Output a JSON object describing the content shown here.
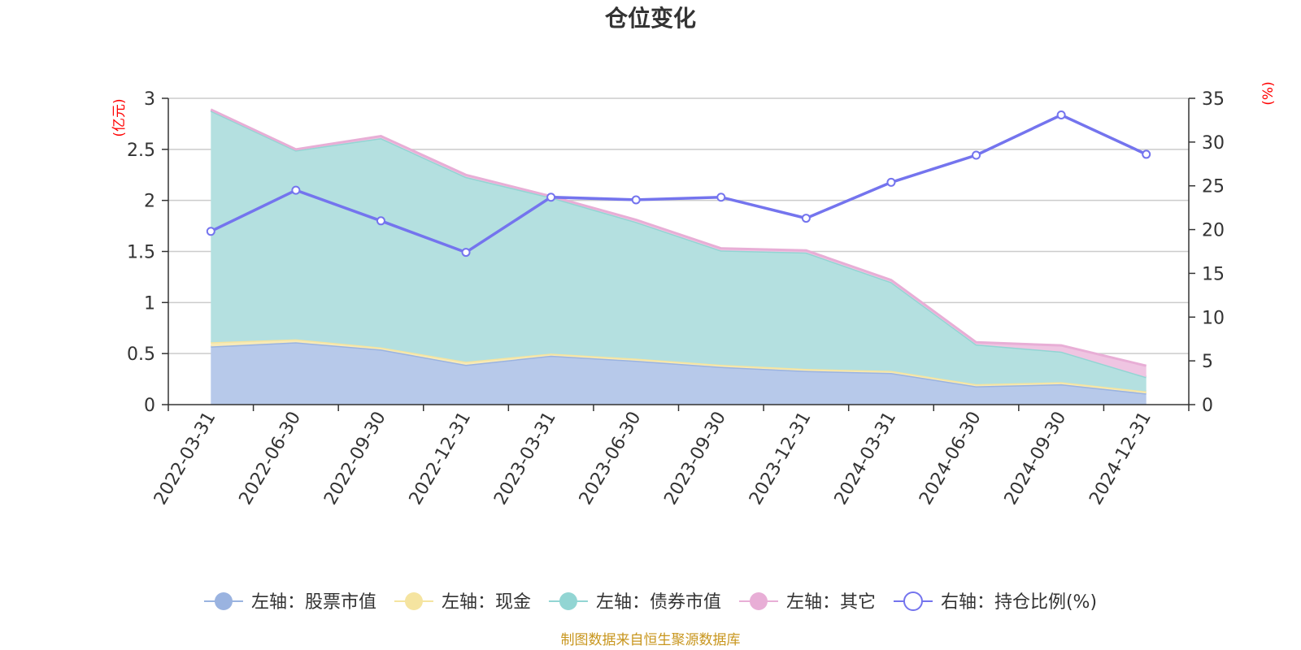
{
  "chart_data": {
    "type": "area",
    "title": "仓位变化",
    "left_unit": "(亿元)",
    "right_unit": "(%)",
    "categories": [
      "2022-03-31",
      "2022-06-30",
      "2022-09-30",
      "2022-12-31",
      "2023-03-31",
      "2023-06-30",
      "2023-09-30",
      "2023-12-31",
      "2024-03-31",
      "2024-06-30",
      "2024-09-30",
      "2024-12-31"
    ],
    "left_axis": {
      "min": 0,
      "max": 3,
      "ticks": [
        "0",
        "0.5",
        "1",
        "1.5",
        "2",
        "2.5",
        "3"
      ],
      "tick_values": [
        0,
        0.5,
        1,
        1.5,
        2,
        2.5,
        3
      ]
    },
    "right_axis": {
      "min": 0,
      "max": 35,
      "ticks": [
        "0",
        "5",
        "10",
        "15",
        "20",
        "25",
        "30",
        "35"
      ],
      "tick_values": [
        0,
        5,
        10,
        15,
        20,
        25,
        30,
        35
      ]
    },
    "series": [
      {
        "name": "左轴：股票市值",
        "axis": "left",
        "stack": true,
        "color": "#9ab3e0",
        "fill": "#b7c9ea",
        "values": [
          0.57,
          0.61,
          0.54,
          0.39,
          0.48,
          0.43,
          0.37,
          0.33,
          0.31,
          0.18,
          0.2,
          0.11
        ]
      },
      {
        "name": "左轴：现金",
        "axis": "left",
        "stack": true,
        "color": "#f5e4a0",
        "fill": "#f7eab8",
        "values": [
          0.04,
          0.03,
          0.02,
          0.03,
          0.02,
          0.02,
          0.02,
          0.02,
          0.02,
          0.02,
          0.02,
          0.02
        ]
      },
      {
        "name": "左轴：债券市值",
        "axis": "left",
        "stack": true,
        "color": "#92d5d3",
        "fill": "#b4e0e0",
        "values": [
          2.27,
          1.85,
          2.05,
          1.81,
          1.53,
          1.34,
          1.12,
          1.14,
          0.87,
          0.39,
          0.3,
          0.14
        ]
      },
      {
        "name": "左轴：其它",
        "axis": "left",
        "stack": true,
        "color": "#e8aed6",
        "fill": "#efc5e2",
        "values": [
          0.01,
          0.01,
          0.02,
          0.02,
          0.01,
          0.02,
          0.02,
          0.02,
          0.02,
          0.02,
          0.06,
          0.11
        ]
      },
      {
        "name": "右轴：持仓比例(%)",
        "axis": "right",
        "stack": false,
        "color": "#7474ee",
        "fill": "none",
        "values": [
          19.8,
          24.5,
          21.0,
          17.4,
          23.7,
          23.4,
          23.7,
          21.3,
          25.4,
          28.5,
          33.1,
          28.6
        ]
      }
    ]
  },
  "footer": "制图数据来自恒生聚源数据库"
}
